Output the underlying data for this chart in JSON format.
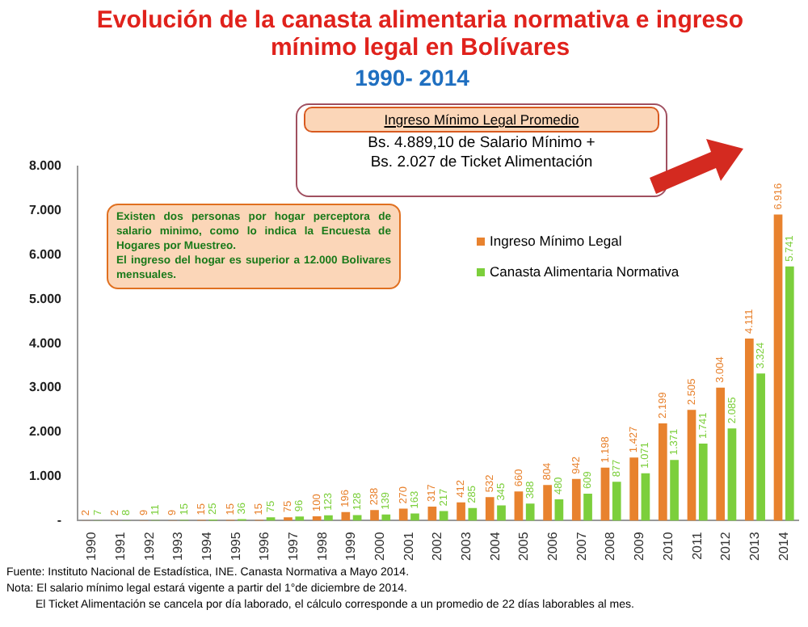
{
  "chart_data": {
    "type": "bar",
    "title": "Evolución de la canasta alimentaria normativa e ingreso mínimo legal en Bolívares",
    "subtitle": "1990- 2014",
    "categories": [
      "1990",
      "1991",
      "1992",
      "1993",
      "1994",
      "1995",
      "1996",
      "1997",
      "1998",
      "1999",
      "2000",
      "2001",
      "2002",
      "2003",
      "2004",
      "2005",
      "2006",
      "2007",
      "2008",
      "2009",
      "2010",
      "2011",
      "2012",
      "2013",
      "2014"
    ],
    "series": [
      {
        "name": "Ingreso Mínimo Legal",
        "color": "#e8822e",
        "values": [
          2,
          2,
          9,
          9,
          15,
          15,
          15,
          75,
          100,
          196,
          238,
          270,
          317,
          412,
          532,
          660,
          804,
          942,
          1198,
          1427,
          2199,
          2505,
          3004,
          4111,
          6916
        ],
        "value_labels": [
          "2",
          "2",
          "9",
          "9",
          "15",
          "15",
          "15",
          "75",
          "100",
          "196",
          "238",
          "270",
          "317",
          "412",
          "532",
          "660",
          "804",
          "942",
          "1.198",
          "1.427",
          "2.199",
          "2.505",
          "3.004",
          "4.111",
          "6.916"
        ]
      },
      {
        "name": "Canasta Alimentaria Normativa",
        "color": "#7ccf3c",
        "values": [
          7,
          8,
          11,
          15,
          25,
          36,
          75,
          96,
          123,
          128,
          139,
          163,
          217,
          285,
          345,
          388,
          480,
          609,
          877,
          1071,
          1371,
          1741,
          2085,
          3324,
          5741
        ],
        "value_labels": [
          "7",
          "8",
          "11",
          "15",
          "25",
          "36",
          "75",
          "96",
          "123",
          "128",
          "139",
          "163",
          "217",
          "285",
          "345",
          "388",
          "480",
          "609",
          "877",
          "1.071",
          "1.371",
          "1.741",
          "2.085",
          "3.324",
          "5.741"
        ]
      }
    ],
    "ylim": [
      0,
      8000
    ],
    "yticks": [
      {
        "value": 0,
        "label": "-"
      },
      {
        "value": 1000,
        "label": "1.000"
      },
      {
        "value": 2000,
        "label": "2.000"
      },
      {
        "value": 3000,
        "label": "3.000"
      },
      {
        "value": 4000,
        "label": "4.000"
      },
      {
        "value": 5000,
        "label": "5.000"
      },
      {
        "value": 6000,
        "label": "6.000"
      },
      {
        "value": 7000,
        "label": "7.000"
      },
      {
        "value": 8000,
        "label": "8.000"
      }
    ],
    "grid": false,
    "legend": "right",
    "annotations": [
      "Ingreso Mínimo Legal Promedio",
      "Bs. 4.889,10 de Salario Mínimo +\nBs. 2.027 de Ticket Alimentación",
      "Existen dos personas por hogar perceptora de salario minimo, como lo indica la Encuesta de Hogares por Muestreo.\nEl ingreso del hogar es superior a 12.000 Bolivares mensuales.",
      "Fuente: Instituto Nacional de Estadística, INE. Canasta Normativa a Mayo 2014.",
      "Nota: El salario mínimo legal  estará vigente a partir del 1°de diciembre de 2014.",
      "El Ticket Alimentación se cancela por día laborado, el cálculo corresponde a un promedio de 22 días laborables al  mes."
    ]
  }
}
